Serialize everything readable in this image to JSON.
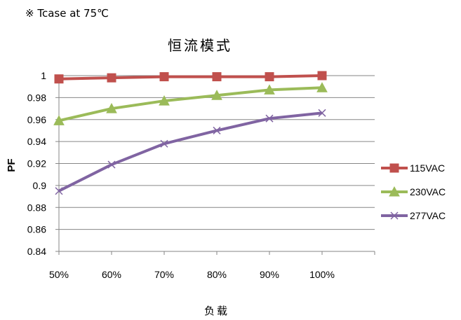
{
  "note": "※ Tcase at 75℃",
  "chart_data": {
    "type": "line",
    "title": "恒流模式",
    "xlabel": "负载",
    "ylabel": "PF",
    "categories": [
      "50%",
      "60%",
      "70%",
      "80%",
      "90%",
      "100%"
    ],
    "ylim": [
      0.84,
      1.0
    ],
    "yticks": [
      "0.84",
      "0.86",
      "0.88",
      "0.9",
      "0.92",
      "0.94",
      "0.96",
      "0.98",
      "1"
    ],
    "grid": true,
    "legend_position": "right",
    "series": [
      {
        "name": "115VAC",
        "color": "#c0504d",
        "marker": "square",
        "values": [
          0.997,
          0.998,
          0.999,
          0.999,
          0.999,
          1.0
        ]
      },
      {
        "name": "230VAC",
        "color": "#9bbb59",
        "marker": "triangle",
        "values": [
          0.959,
          0.97,
          0.977,
          0.982,
          0.987,
          0.989
        ]
      },
      {
        "name": "277VAC",
        "color": "#8064a2",
        "marker": "x",
        "values": [
          0.895,
          0.919,
          0.938,
          0.95,
          0.961,
          0.966
        ]
      }
    ]
  }
}
